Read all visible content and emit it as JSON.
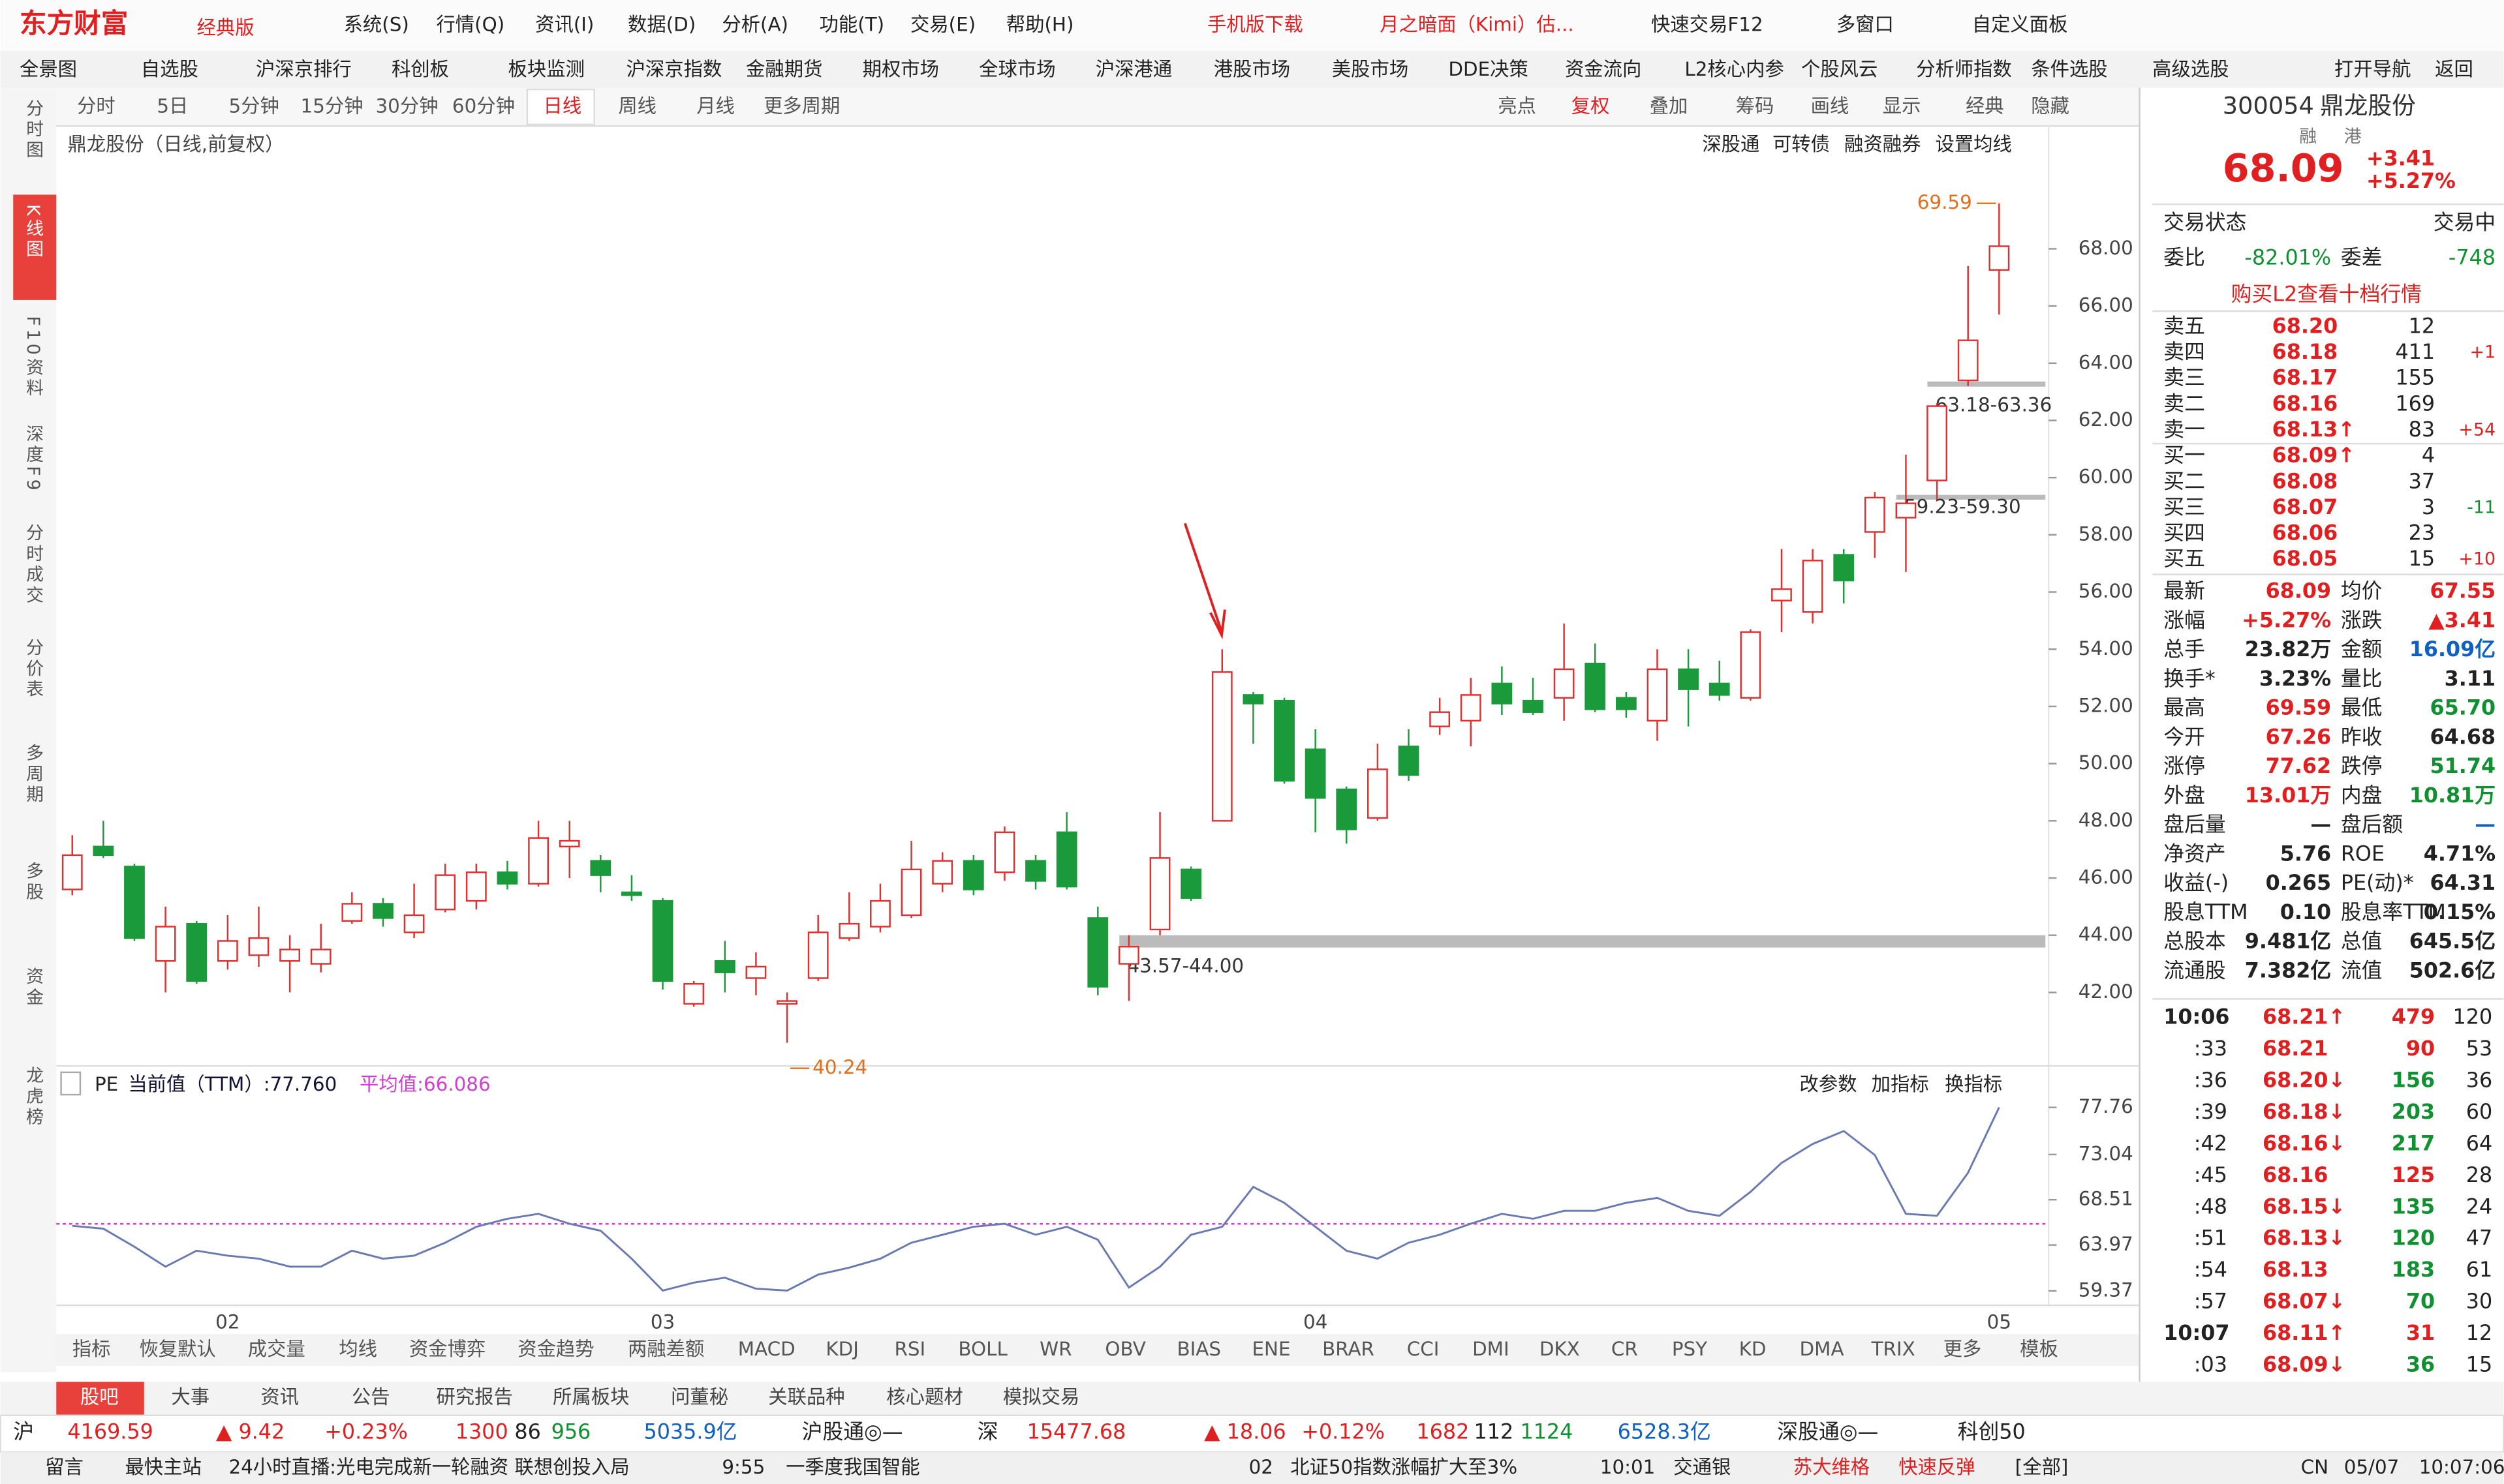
{
  "app": {
    "logo": "东方财富",
    "edition": "经典版",
    "menu": [
      "系统(S)",
      "行情(Q)",
      "资讯(I)",
      "数据(D)",
      "分析(A)",
      "功能(T)",
      "交易(E)",
      "帮助(H)"
    ],
    "top_buttons": [
      "手机版下载",
      "月之暗面（Kimi）估...",
      "快速交易F12",
      "多窗口",
      "自定义面板"
    ]
  },
  "nav": [
    "全景图",
    "自选股",
    "沪深京排行",
    "科创板",
    "板块监测",
    "沪深京指数",
    "金融期货",
    "期权市场",
    "全球市场",
    "沪深港通",
    "港股市场",
    "美股市场",
    "DDE决策",
    "资金流向",
    "L2核心内参",
    "个股风云",
    "分析师指数",
    "条件选股",
    "高级选股",
    "打开导航",
    "返回"
  ],
  "sidebar": [
    "分时图",
    "K线图",
    "F10资料",
    "深度F9",
    "分时成交",
    "分价表",
    "多周期",
    "多股",
    "资金",
    "龙虎榜"
  ],
  "periods": [
    "分时",
    "5日",
    "5分钟",
    "15分钟",
    "30分钟",
    "60分钟",
    "日线",
    "周线",
    "月线",
    "更多周期"
  ],
  "chart_tools": [
    "亮点",
    "复权",
    "叠加",
    "筹码",
    "画线",
    "显示",
    "经典",
    "隐藏"
  ],
  "chart_links": [
    "深股通",
    "可转债",
    "融资融券",
    "设置均线"
  ],
  "chart_label": "鼎龙股份（日线,前复权）",
  "chart_data": {
    "type": "candlestick",
    "categories": [
      null,
      null,
      null,
      null,
      null,
      "02",
      null,
      null,
      null,
      null,
      null,
      null,
      null,
      null,
      null,
      null,
      null,
      null,
      null,
      "03",
      null,
      null,
      null,
      null,
      null,
      null,
      null,
      null,
      null,
      null,
      null,
      null,
      null,
      null,
      null,
      null,
      null,
      null,
      null,
      null,
      "04",
      null,
      null,
      null,
      null,
      null,
      null,
      null,
      null,
      null,
      null,
      null,
      null,
      null,
      null,
      null,
      null,
      null,
      null,
      null,
      null,
      null,
      "05"
    ],
    "open": [
      45.6,
      47.1,
      46.4,
      43.1,
      44.4,
      43.1,
      43.3,
      43.1,
      43.0,
      44.5,
      45.1,
      44.1,
      44.9,
      45.2,
      46.2,
      45.8,
      47.1,
      46.6,
      45.5,
      45.2,
      41.6,
      43.1,
      42.5,
      41.6,
      42.5,
      43.9,
      44.3,
      44.7,
      45.8,
      46.6,
      46.2,
      46.6,
      47.6,
      44.6,
      43.0,
      44.2,
      46.3,
      48.0,
      52.4,
      52.2,
      50.5,
      49.1,
      48.1,
      50.6,
      51.3,
      51.5,
      52.8,
      52.2,
      52.3,
      53.5,
      52.3,
      51.5,
      53.3,
      52.8,
      52.3,
      55.7,
      55.3,
      57.3,
      58.1,
      58.6,
      59.9,
      63.4,
      67.26
    ],
    "high": [
      47.5,
      48.0,
      46.5,
      45.0,
      44.5,
      44.7,
      45.0,
      44.0,
      44.4,
      45.5,
      45.3,
      45.8,
      46.5,
      46.5,
      46.6,
      48.0,
      48.0,
      46.8,
      46.1,
      45.3,
      42.4,
      43.8,
      43.4,
      42.0,
      44.7,
      45.5,
      45.8,
      47.3,
      46.9,
      46.8,
      47.8,
      46.8,
      48.3,
      45.0,
      44.0,
      48.3,
      46.4,
      54.0,
      52.5,
      52.3,
      51.2,
      49.2,
      50.7,
      51.2,
      52.3,
      53.0,
      53.4,
      53.0,
      54.9,
      54.2,
      52.5,
      54.0,
      54.0,
      53.6,
      54.7,
      57.5,
      57.5,
      57.5,
      59.5,
      60.8,
      62.6,
      67.4,
      69.59
    ],
    "low": [
      45.4,
      46.7,
      43.8,
      42.0,
      42.3,
      42.8,
      42.9,
      42.0,
      42.7,
      44.4,
      44.3,
      43.9,
      44.8,
      44.9,
      45.6,
      45.7,
      46.0,
      45.5,
      45.2,
      42.1,
      41.5,
      42.0,
      41.9,
      40.24,
      42.4,
      43.8,
      44.1,
      44.6,
      45.5,
      45.4,
      45.9,
      45.6,
      45.6,
      41.9,
      41.7,
      44.0,
      45.2,
      48.0,
      50.7,
      49.3,
      47.6,
      47.2,
      48.0,
      49.4,
      51.0,
      50.6,
      51.7,
      51.7,
      51.5,
      51.8,
      51.6,
      50.8,
      51.3,
      52.2,
      52.2,
      54.6,
      54.9,
      55.6,
      57.2,
      56.7,
      59.2,
      63.2,
      65.7
    ],
    "close": [
      46.8,
      46.8,
      43.9,
      44.3,
      42.4,
      43.8,
      43.9,
      43.5,
      43.5,
      45.1,
      44.6,
      44.7,
      46.1,
      46.2,
      45.8,
      47.4,
      47.3,
      46.1,
      45.4,
      42.4,
      42.3,
      42.7,
      42.9,
      41.7,
      44.1,
      44.4,
      45.2,
      46.3,
      46.6,
      45.6,
      47.6,
      45.9,
      45.7,
      42.2,
      43.6,
      46.7,
      45.3,
      53.2,
      52.1,
      49.4,
      48.8,
      47.7,
      49.8,
      49.6,
      51.8,
      52.4,
      52.1,
      51.8,
      53.3,
      51.9,
      51.9,
      53.3,
      52.6,
      52.4,
      54.6,
      56.1,
      57.1,
      56.4,
      59.3,
      59.1,
      62.5,
      64.8,
      68.09
    ],
    "up_color": "#e03030",
    "down_color": "#1a9a3a",
    "ylim": [
      39.43,
      71.12
    ],
    "yticks": [
      {
        "value": 42,
        "label": "42.00"
      },
      {
        "value": 44,
        "label": "44.00"
      },
      {
        "value": 46,
        "label": "46.00"
      },
      {
        "value": 48,
        "label": "48.00"
      },
      {
        "value": 50,
        "label": "50.00"
      },
      {
        "value": 52,
        "label": "52.00"
      },
      {
        "value": 54,
        "label": "54.00"
      },
      {
        "value": 56,
        "label": "56.00"
      },
      {
        "value": 58,
        "label": "58.00"
      },
      {
        "value": 60,
        "label": "60.00"
      },
      {
        "value": 62,
        "label": "62.00"
      },
      {
        "value": 64,
        "label": "64.00"
      },
      {
        "value": 66,
        "label": "66.00"
      },
      {
        "value": 68,
        "label": "68.00"
      }
    ],
    "high_label": {
      "value": 69.59,
      "label": "69.59"
    },
    "low_label": {
      "value": 40.24,
      "label": "40.24"
    },
    "zones": [
      {
        "label": "43.57-44.00",
        "low": 43.57,
        "high": 44.0
      },
      {
        "label": "59.23-59.30",
        "low": 59.23,
        "high": 59.3
      },
      {
        "label": "63.18-63.36",
        "low": 63.18,
        "high": 63.36
      }
    ]
  },
  "indicator": {
    "type": "line",
    "name": "PE",
    "current": "当前值（TTM）:77.760",
    "average_label": "平均值:66.086",
    "average": 66.086,
    "color": "#6a7ab0",
    "average_color": "#d040d0",
    "buttons": [
      "改参数",
      "加指标",
      "换指标"
    ],
    "values": [
      65.9,
      65.6,
      63.8,
      61.8,
      63.4,
      62.9,
      62.6,
      61.8,
      61.8,
      63.4,
      62.6,
      62.9,
      64.2,
      65.8,
      66.6,
      67.1,
      66.1,
      65.4,
      62.6,
      59.4,
      60.2,
      60.7,
      59.6,
      59.4,
      61.0,
      61.7,
      62.6,
      64.2,
      65.0,
      65.8,
      66.1,
      65.0,
      65.8,
      64.5,
      59.7,
      61.8,
      65.0,
      65.8,
      69.8,
      68.2,
      65.8,
      63.4,
      62.6,
      64.2,
      65.0,
      66.1,
      67.1,
      66.6,
      67.4,
      67.4,
      68.2,
      68.7,
      67.4,
      66.9,
      69.3,
      72.2,
      74.1,
      75.4,
      73.0,
      67.1,
      66.9,
      71.2,
      77.76
    ],
    "ylim": [
      59.37,
      77.76
    ],
    "yticks": [
      59.37,
      63.97,
      68.51,
      73.04,
      77.76
    ]
  },
  "indicator_tabs": [
    "指标",
    "恢复默认",
    "成交量",
    "均线",
    "资金博弈",
    "资金趋势",
    "两融差额",
    "MACD",
    "KDJ",
    "RSI",
    "BOLL",
    "WR",
    "OBV",
    "BIAS",
    "ENE",
    "BRAR",
    "CCI",
    "DMI",
    "DKX",
    "CR",
    "PSY",
    "KD",
    "DMA",
    "TRIX",
    "更多",
    "模板"
  ],
  "bottom_tabs": [
    "股吧",
    "大事",
    "资讯",
    "公告",
    "研究报告",
    "所属板块",
    "问董秘",
    "关联品种",
    "核心题材",
    "模拟交易"
  ],
  "index_bar": [
    "沪",
    "4169.59",
    "▲ 9.42",
    "+0.23%",
    "1300",
    "86",
    "956",
    "5035.9亿",
    "沪股通◎—",
    "深",
    "15477.68",
    "▲ 18.06",
    "+0.12%",
    "1682",
    "112",
    "1124",
    "6528.3亿",
    "深股通◎—",
    "科创50"
  ],
  "status_bar": [
    "留言",
    "最快主站",
    "24小时直播:光电完成新一轮融资 联想创投入局",
    "9:55",
    "一季度我国智能",
    "02",
    "北证50指数涨幅扩大至3%",
    "10:01",
    "交通银",
    "苏大维格",
    "快速反弹",
    "[全部]",
    "CN",
    "05/07",
    "10:07:06"
  ],
  "quote": {
    "code": "300054",
    "name": "鼎龙股份",
    "tags": [
      "融",
      "港"
    ],
    "price": "68.09",
    "change": "+3.41",
    "pct": "+5.27%",
    "state": [
      "交易状态",
      "交易中"
    ],
    "ratio": [
      "委比",
      "-82.01%",
      "委差",
      "-748"
    ],
    "l2_link": "购买L2查看十档行情",
    "asks": [
      {
        "label": "卖五",
        "price": "68.20",
        "vol": "12"
      },
      {
        "label": "卖四",
        "price": "68.18",
        "vol": "411",
        "chg": "+1"
      },
      {
        "label": "卖三",
        "price": "68.17",
        "vol": "155"
      },
      {
        "label": "卖二",
        "price": "68.16",
        "vol": "169"
      },
      {
        "label": "卖一",
        "price": "68.13↑",
        "vol": "83",
        "chg": "+54"
      }
    ],
    "bids": [
      {
        "label": "买一",
        "price": "68.09↑",
        "vol": "4"
      },
      {
        "label": "买二",
        "price": "68.08",
        "vol": "37"
      },
      {
        "label": "买三",
        "price": "68.07",
        "vol": "3",
        "chg": "-11"
      },
      {
        "label": "买四",
        "price": "68.06",
        "vol": "23"
      },
      {
        "label": "买五",
        "price": "68.05",
        "vol": "15",
        "chg": "+10"
      }
    ],
    "stats": [
      [
        "最新",
        "68.09",
        "均价",
        "67.55"
      ],
      [
        "涨幅",
        "+5.27%",
        "涨跌",
        "▲3.41"
      ],
      [
        "总手",
        "23.82万",
        "金额",
        "16.09亿"
      ],
      [
        "换手*",
        "3.23%",
        "量比",
        "3.11"
      ],
      [
        "最高",
        "69.59",
        "最低",
        "65.70"
      ],
      [
        "今开",
        "67.26",
        "昨收",
        "64.68"
      ],
      [
        "涨停",
        "77.62",
        "跌停",
        "51.74"
      ],
      [
        "外盘",
        "13.01万",
        "内盘",
        "10.81万"
      ],
      [
        "盘后量",
        "—",
        "盘后额",
        "—"
      ],
      [
        "净资产",
        "5.76",
        "ROE",
        "4.71%"
      ],
      [
        "收益(-)",
        "0.265",
        "PE(动)*",
        "64.31"
      ],
      [
        "股息TTM",
        "0.10",
        "股息率TTM",
        "0.15%"
      ],
      [
        "总股本",
        "9.481亿",
        "总值",
        "645.5亿"
      ],
      [
        "流通股",
        "7.382亿",
        "流值",
        "502.6亿"
      ]
    ],
    "ticks": [
      [
        "10:06",
        "68.21↑",
        "479",
        "120"
      ],
      [
        ":33",
        "68.21",
        "90",
        "53"
      ],
      [
        ":36",
        "68.20↓",
        "156",
        "36"
      ],
      [
        ":39",
        "68.18↓",
        "203",
        "60"
      ],
      [
        ":42",
        "68.16↓",
        "217",
        "64"
      ],
      [
        ":45",
        "68.16",
        "125",
        "28"
      ],
      [
        ":48",
        "68.15↓",
        "135",
        "24"
      ],
      [
        ":51",
        "68.13↓",
        "120",
        "47"
      ],
      [
        ":54",
        "68.13",
        "183",
        "61"
      ],
      [
        ":57",
        "68.07↓",
        "70",
        "30"
      ],
      [
        "10:07",
        "68.11↑",
        "31",
        "12"
      ],
      [
        ":03",
        "68.09↓",
        "36",
        "15"
      ]
    ]
  }
}
